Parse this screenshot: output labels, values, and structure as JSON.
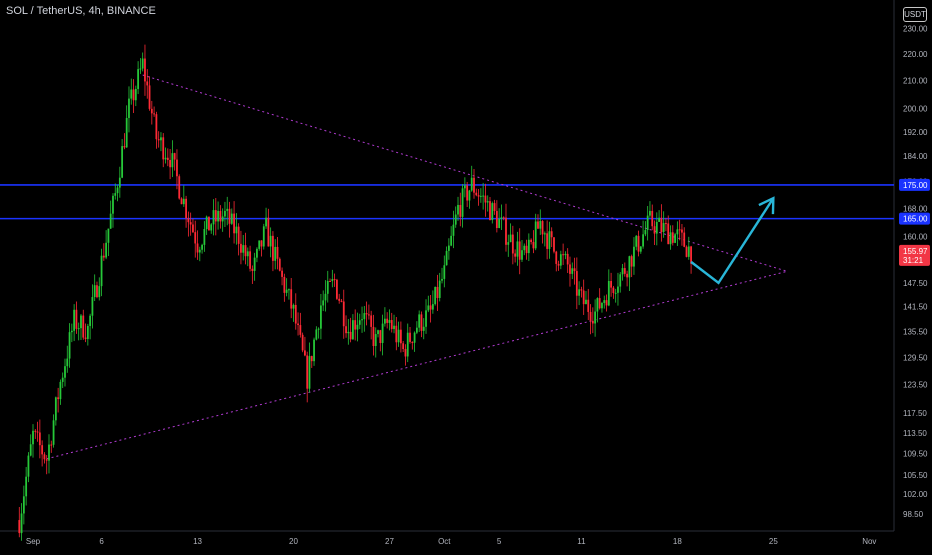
{
  "header": {
    "symbol_title": "SOL / TetherUS, 4h, BINANCE",
    "currency": "USDT"
  },
  "colors": {
    "background": "#000000",
    "bull": "#26c839",
    "bear": "#ff2a35",
    "level_line": "#1a33ff",
    "trendline": "#b03bd0",
    "projection": "#29b6d8",
    "axis_text": "#b2b5be",
    "price_tag": "#f23645"
  },
  "chart_data": {
    "type": "candlestick",
    "title": "SOL / TetherUS, 4h, BINANCE",
    "y_scale": "log",
    "ylim": [
      96.5,
      238
    ],
    "y_ticks": [
      98.5,
      102.0,
      105.5,
      109.5,
      113.5,
      117.5,
      123.5,
      129.5,
      135.5,
      141.5,
      147.5,
      154.0,
      160.0,
      168.0,
      176.0,
      184.0,
      192.0,
      200.0,
      210.0,
      220.0,
      230.0
    ],
    "x_ticks": [
      "Sep",
      "6",
      "13",
      "20",
      "27",
      "Oct",
      "5",
      "11",
      "18",
      "25",
      "Nov"
    ],
    "x_tick_dates": [
      "2021-09-01",
      "2021-09-06",
      "2021-09-13",
      "2021-09-20",
      "2021-09-27",
      "2021-10-01",
      "2021-10-05",
      "2021-10-11",
      "2021-10-18",
      "2021-10-25",
      "2021-11-01"
    ],
    "grid": false,
    "current_price": {
      "value": 155.97,
      "label": "155.97",
      "countdown": "31:21"
    },
    "levels": [
      {
        "price": 175.0,
        "label": "175.00"
      },
      {
        "price": 165.0,
        "label": "165.00"
      }
    ],
    "trendlines": [
      {
        "name": "descending resistance",
        "points": [
          [
            "2021-09-09",
            212.0
          ],
          [
            "2021-10-26",
            150.5
          ]
        ]
      },
      {
        "name": "ascending support",
        "points": [
          [
            "2021-09-02",
            108.5
          ],
          [
            "2021-10-26",
            150.5
          ]
        ]
      }
    ],
    "projection": {
      "points": [
        [
          "2021-10-19",
          153.0
        ],
        [
          "2021-10-21",
          147.5
        ],
        [
          "2021-10-25",
          171.0
        ]
      ],
      "arrow": true
    },
    "price_path": [
      [
        "2021-08-31",
        97.5
      ],
      [
        "2021-09-01",
        113
      ],
      [
        "2021-09-02",
        108.5
      ],
      [
        "2021-09-03",
        124
      ],
      [
        "2021-09-04",
        138
      ],
      [
        "2021-09-05",
        136
      ],
      [
        "2021-09-06",
        153
      ],
      [
        "2021-09-07",
        172
      ],
      [
        "2021-09-08",
        200
      ],
      [
        "2021-09-09",
        216
      ],
      [
        "2021-09-10",
        190
      ],
      [
        "2021-09-11",
        184
      ],
      [
        "2021-09-12",
        170
      ],
      [
        "2021-09-13",
        158
      ],
      [
        "2021-09-14",
        164
      ],
      [
        "2021-09-15",
        166
      ],
      [
        "2021-09-16",
        160
      ],
      [
        "2021-09-17",
        150
      ],
      [
        "2021-09-18",
        162
      ],
      [
        "2021-09-19",
        150
      ],
      [
        "2021-09-20",
        140
      ],
      [
        "2021-09-21",
        125
      ],
      [
        "2021-09-22",
        142
      ],
      [
        "2021-09-23",
        148
      ],
      [
        "2021-09-24",
        136
      ],
      [
        "2021-09-25",
        140
      ],
      [
        "2021-09-26",
        133
      ],
      [
        "2021-09-27",
        138
      ],
      [
        "2021-09-28",
        131
      ],
      [
        "2021-09-29",
        137
      ],
      [
        "2021-09-30",
        140
      ],
      [
        "2021-10-01",
        150
      ],
      [
        "2021-10-02",
        168
      ],
      [
        "2021-10-03",
        175
      ],
      [
        "2021-10-04",
        170
      ],
      [
        "2021-10-05",
        164
      ],
      [
        "2021-10-06",
        158
      ],
      [
        "2021-10-07",
        154
      ],
      [
        "2021-10-08",
        164
      ],
      [
        "2021-10-09",
        156
      ],
      [
        "2021-10-10",
        152
      ],
      [
        "2021-10-11",
        143
      ],
      [
        "2021-10-12",
        140
      ],
      [
        "2021-10-13",
        146
      ],
      [
        "2021-10-14",
        150
      ],
      [
        "2021-10-15",
        157
      ],
      [
        "2021-10-16",
        164
      ],
      [
        "2021-10-17",
        162
      ],
      [
        "2021-10-18",
        160
      ],
      [
        "2021-10-19",
        155.97
      ]
    ]
  }
}
